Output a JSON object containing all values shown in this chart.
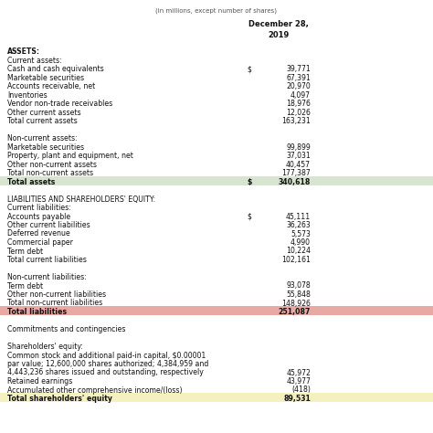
{
  "title_top": "(in millions, except number of shares)",
  "col_header": "December 28,\n2019",
  "background_color": "#ffffff",
  "highlight_total_assets": "#d6e4d0",
  "highlight_total_liabilities": "#e8a8a4",
  "highlight_shareholders_equity": "#f5f0c0",
  "rows": [
    {
      "label": "ASSETS:",
      "value": null,
      "dollar": false,
      "bold": true,
      "indent": 0,
      "highlight": null
    },
    {
      "label": "Current assets:",
      "value": null,
      "dollar": false,
      "bold": false,
      "indent": 0,
      "highlight": null
    },
    {
      "label": "Cash and cash equivalents",
      "value": "39,771",
      "dollar": true,
      "bold": false,
      "indent": 0,
      "highlight": null
    },
    {
      "label": "Marketable securities",
      "value": "67,391",
      "dollar": false,
      "bold": false,
      "indent": 0,
      "highlight": null
    },
    {
      "label": "Accounts receivable, net",
      "value": "20,970",
      "dollar": false,
      "bold": false,
      "indent": 0,
      "highlight": null
    },
    {
      "label": "Inventories",
      "value": "4,097",
      "dollar": false,
      "bold": false,
      "indent": 0,
      "highlight": null
    },
    {
      "label": "Vendor non-trade receivables",
      "value": "18,976",
      "dollar": false,
      "bold": false,
      "indent": 0,
      "highlight": null
    },
    {
      "label": "Other current assets",
      "value": "12,026",
      "dollar": false,
      "bold": false,
      "indent": 0,
      "highlight": null
    },
    {
      "label": "Total current assets",
      "value": "163,231",
      "dollar": false,
      "bold": false,
      "indent": 0,
      "highlight": null
    },
    {
      "label": "",
      "value": null,
      "dollar": false,
      "bold": false,
      "indent": 0,
      "highlight": null
    },
    {
      "label": "Non-current assets:",
      "value": null,
      "dollar": false,
      "bold": false,
      "indent": 0,
      "highlight": null
    },
    {
      "label": "Marketable securities",
      "value": "99,899",
      "dollar": false,
      "bold": false,
      "indent": 0,
      "highlight": null
    },
    {
      "label": "Property, plant and equipment, net",
      "value": "37,031",
      "dollar": false,
      "bold": false,
      "indent": 0,
      "highlight": null
    },
    {
      "label": "Other non-current assets",
      "value": "40,457",
      "dollar": false,
      "bold": false,
      "indent": 0,
      "highlight": null
    },
    {
      "label": "Total non-current assets",
      "value": "177,387",
      "dollar": false,
      "bold": false,
      "indent": 0,
      "highlight": null
    },
    {
      "label": "Total assets",
      "value": "340,618",
      "dollar": true,
      "bold": true,
      "indent": 0,
      "highlight": "assets"
    },
    {
      "label": "",
      "value": null,
      "dollar": false,
      "bold": false,
      "indent": 0,
      "highlight": null
    },
    {
      "label": "LIABILITIES AND SHAREHOLDERS' EQUITY:",
      "value": null,
      "dollar": false,
      "bold": false,
      "indent": 0,
      "highlight": null
    },
    {
      "label": "Current liabilities:",
      "value": null,
      "dollar": false,
      "bold": false,
      "indent": 0,
      "highlight": null
    },
    {
      "label": "Accounts payable",
      "value": "45,111",
      "dollar": true,
      "bold": false,
      "indent": 0,
      "highlight": null
    },
    {
      "label": "Other current liabilities",
      "value": "36,263",
      "dollar": false,
      "bold": false,
      "indent": 0,
      "highlight": null
    },
    {
      "label": "Deferred revenue",
      "value": "5,573",
      "dollar": false,
      "bold": false,
      "indent": 0,
      "highlight": null
    },
    {
      "label": "Commercial paper",
      "value": "4,990",
      "dollar": false,
      "bold": false,
      "indent": 0,
      "highlight": null
    },
    {
      "label": "Term debt",
      "value": "10,224",
      "dollar": false,
      "bold": false,
      "indent": 0,
      "highlight": null
    },
    {
      "label": "Total current liabilities",
      "value": "102,161",
      "dollar": false,
      "bold": false,
      "indent": 0,
      "highlight": null
    },
    {
      "label": "",
      "value": null,
      "dollar": false,
      "bold": false,
      "indent": 0,
      "highlight": null
    },
    {
      "label": "Non-current liabilities:",
      "value": null,
      "dollar": false,
      "bold": false,
      "indent": 0,
      "highlight": null
    },
    {
      "label": "Term debt",
      "value": "93,078",
      "dollar": false,
      "bold": false,
      "indent": 0,
      "highlight": null
    },
    {
      "label": "Other non-current liabilities",
      "value": "55,848",
      "dollar": false,
      "bold": false,
      "indent": 0,
      "highlight": null
    },
    {
      "label": "Total non-current liabilities",
      "value": "148,926",
      "dollar": false,
      "bold": false,
      "indent": 0,
      "highlight": null
    },
    {
      "label": "Total liabilities",
      "value": "251,087",
      "dollar": false,
      "bold": true,
      "indent": 0,
      "highlight": "liabilities"
    },
    {
      "label": "",
      "value": null,
      "dollar": false,
      "bold": false,
      "indent": 0,
      "highlight": null
    },
    {
      "label": "Commitments and contingencies",
      "value": null,
      "dollar": false,
      "bold": false,
      "indent": 0,
      "highlight": null
    },
    {
      "label": "",
      "value": null,
      "dollar": false,
      "bold": false,
      "indent": 0,
      "highlight": null
    },
    {
      "label": "Shareholders' equity:",
      "value": null,
      "dollar": false,
      "bold": false,
      "indent": 0,
      "highlight": null
    },
    {
      "label": "Common stock and additional paid-in capital, $0.00001",
      "value": null,
      "dollar": false,
      "bold": false,
      "indent": 0,
      "highlight": null
    },
    {
      "label": "par value; 12,600,000 shares authorized; 4,384,959 and",
      "value": null,
      "dollar": false,
      "bold": false,
      "indent": 0,
      "highlight": null
    },
    {
      "label": "4,443,236 shares issued and outstanding, respectively",
      "value": "45,972",
      "dollar": false,
      "bold": false,
      "indent": 0,
      "highlight": null
    },
    {
      "label": "Retained earnings",
      "value": "43,977",
      "dollar": false,
      "bold": false,
      "indent": 0,
      "highlight": null
    },
    {
      "label": "Accumulated other comprehensive income/(loss)",
      "value": "(418)",
      "dollar": false,
      "bold": false,
      "indent": 0,
      "highlight": null
    },
    {
      "label": "Total shareholders' equity",
      "value": "89,531",
      "dollar": false,
      "bold": true,
      "indent": 0,
      "highlight": "equity"
    }
  ]
}
